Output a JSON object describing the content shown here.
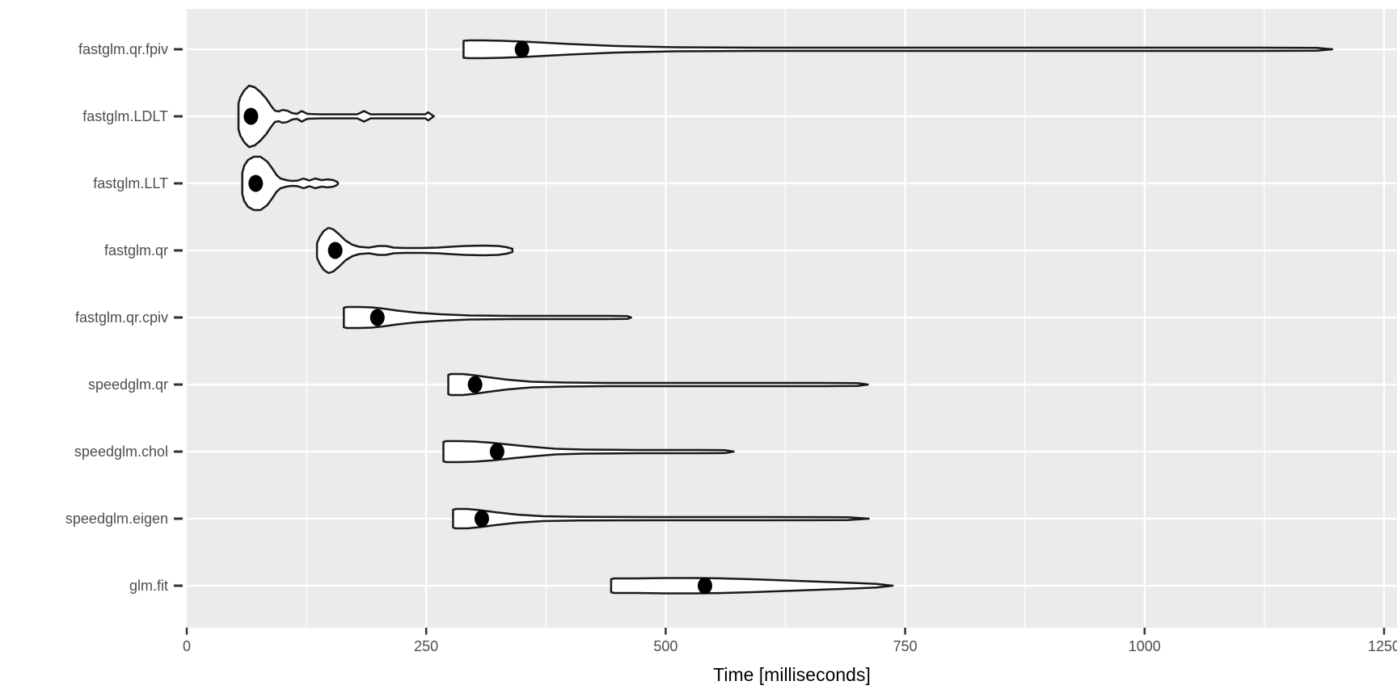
{
  "chart_data": {
    "type": "violin",
    "orientation": "horizontal",
    "title": "",
    "xlabel": "Time [milliseconds]",
    "ylabel": "",
    "xlim": [
      0,
      1263
    ],
    "grid": "on",
    "x_ticks": [
      {
        "value": 0,
        "label": "0"
      },
      {
        "value": 250,
        "label": "250"
      },
      {
        "value": 500,
        "label": "500"
      },
      {
        "value": 750,
        "label": "750"
      },
      {
        "value": 1000,
        "label": "1000"
      },
      {
        "value": 1250,
        "label": "1250"
      }
    ],
    "x_minor_ticks": [
      125,
      375,
      625,
      875,
      1125
    ],
    "categories": [
      "fastglm.qr.fpiv",
      "fastglm.LDLT",
      "fastglm.LLT",
      "fastglm.qr",
      "fastglm.qr.cpiv",
      "speedglm.qr",
      "speedglm.chol",
      "speedglm.eigen",
      "glm.fit"
    ],
    "series": [
      {
        "name": "fastglm.qr.fpiv",
        "min_ms": 289,
        "median_ms": 350,
        "max_ms": 1196,
        "profile": [
          [
            289,
            10.5
          ],
          [
            295,
            11
          ],
          [
            310,
            11
          ],
          [
            330,
            10.5
          ],
          [
            360,
            9
          ],
          [
            400,
            6.5
          ],
          [
            450,
            4
          ],
          [
            510,
            2.5
          ],
          [
            600,
            2
          ],
          [
            800,
            2
          ],
          [
            1000,
            2
          ],
          [
            1120,
            2
          ],
          [
            1180,
            1.8
          ],
          [
            1196,
            0
          ]
        ]
      },
      {
        "name": "fastglm.LDLT",
        "min_ms": 54,
        "median_ms": 67,
        "max_ms": 258,
        "profile": [
          [
            54,
            16
          ],
          [
            56,
            24
          ],
          [
            60,
            32
          ],
          [
            65,
            38
          ],
          [
            71,
            36
          ],
          [
            77,
            30
          ],
          [
            83,
            22
          ],
          [
            88,
            13
          ],
          [
            92,
            7
          ],
          [
            96,
            6
          ],
          [
            100,
            8
          ],
          [
            105,
            7
          ],
          [
            110,
            4
          ],
          [
            115,
            3
          ],
          [
            120,
            6.5
          ],
          [
            126,
            3
          ],
          [
            140,
            2.5
          ],
          [
            160,
            2.5
          ],
          [
            178,
            2.5
          ],
          [
            185,
            6.5
          ],
          [
            192,
            2.5
          ],
          [
            215,
            2.5
          ],
          [
            240,
            2.5
          ],
          [
            249,
            2.5
          ],
          [
            252,
            5
          ],
          [
            258,
            0
          ]
        ]
      },
      {
        "name": "fastglm.LLT",
        "min_ms": 58,
        "median_ms": 72,
        "max_ms": 158,
        "profile": [
          [
            58,
            13
          ],
          [
            60,
            22
          ],
          [
            64,
            29
          ],
          [
            70,
            33
          ],
          [
            77,
            33
          ],
          [
            84,
            27
          ],
          [
            89,
            19
          ],
          [
            94,
            10
          ],
          [
            98,
            6
          ],
          [
            104,
            4
          ],
          [
            110,
            3
          ],
          [
            116,
            3.5
          ],
          [
            122,
            6
          ],
          [
            128,
            3.5
          ],
          [
            134,
            6
          ],
          [
            141,
            4
          ],
          [
            147,
            5
          ],
          [
            153,
            4
          ],
          [
            157,
            2
          ],
          [
            158,
            0
          ]
        ]
      },
      {
        "name": "fastglm.qr",
        "min_ms": 136,
        "median_ms": 155,
        "max_ms": 340,
        "profile": [
          [
            136,
            9
          ],
          [
            139,
            17
          ],
          [
            143,
            24
          ],
          [
            148,
            28
          ],
          [
            153,
            26
          ],
          [
            159,
            20
          ],
          [
            166,
            12
          ],
          [
            173,
            7
          ],
          [
            180,
            4.5
          ],
          [
            190,
            3.5
          ],
          [
            200,
            5.5
          ],
          [
            208,
            5.5
          ],
          [
            216,
            3.5
          ],
          [
            228,
            3
          ],
          [
            245,
            3
          ],
          [
            262,
            3.5
          ],
          [
            275,
            4.5
          ],
          [
            290,
            5.5
          ],
          [
            310,
            6
          ],
          [
            325,
            5.5
          ],
          [
            334,
            4
          ],
          [
            340,
            2
          ]
        ]
      },
      {
        "name": "fastglm.qr.cpiv",
        "min_ms": 164,
        "median_ms": 199,
        "max_ms": 464,
        "profile": [
          [
            164,
            12
          ],
          [
            167,
            13
          ],
          [
            180,
            13
          ],
          [
            193,
            12.5
          ],
          [
            205,
            11
          ],
          [
            220,
            8.5
          ],
          [
            240,
            6
          ],
          [
            265,
            4
          ],
          [
            295,
            2.5
          ],
          [
            340,
            2
          ],
          [
            400,
            2
          ],
          [
            440,
            2
          ],
          [
            460,
            1.8
          ],
          [
            464,
            0
          ]
        ]
      },
      {
        "name": "speedglm.qr",
        "min_ms": 273,
        "median_ms": 301,
        "max_ms": 711,
        "profile": [
          [
            273,
            12
          ],
          [
            276,
            13
          ],
          [
            288,
            13
          ],
          [
            300,
            11.5
          ],
          [
            315,
            9
          ],
          [
            335,
            6
          ],
          [
            360,
            3.5
          ],
          [
            395,
            2.5
          ],
          [
            440,
            2
          ],
          [
            550,
            2
          ],
          [
            650,
            2
          ],
          [
            700,
            1.8
          ],
          [
            711,
            0
          ]
        ]
      },
      {
        "name": "speedglm.chol",
        "min_ms": 268,
        "median_ms": 324,
        "max_ms": 571,
        "profile": [
          [
            268,
            12
          ],
          [
            271,
            13
          ],
          [
            285,
            13
          ],
          [
            300,
            12.5
          ],
          [
            318,
            11
          ],
          [
            338,
            8.5
          ],
          [
            360,
            6
          ],
          [
            385,
            3.5
          ],
          [
            415,
            2.5
          ],
          [
            470,
            2
          ],
          [
            530,
            2
          ],
          [
            562,
            1.8
          ],
          [
            571,
            0
          ]
        ]
      },
      {
        "name": "speedglm.eigen",
        "min_ms": 278,
        "median_ms": 308,
        "max_ms": 712,
        "profile": [
          [
            278,
            11
          ],
          [
            281,
            12
          ],
          [
            293,
            12
          ],
          [
            306,
            10.5
          ],
          [
            322,
            8
          ],
          [
            345,
            5
          ],
          [
            372,
            3
          ],
          [
            410,
            2.2
          ],
          [
            480,
            2
          ],
          [
            600,
            2
          ],
          [
            690,
            1.8
          ],
          [
            712,
            0
          ]
        ]
      },
      {
        "name": "glm.fit",
        "min_ms": 443,
        "median_ms": 541,
        "max_ms": 737,
        "profile": [
          [
            443,
            8
          ],
          [
            446,
            9
          ],
          [
            470,
            9
          ],
          [
            500,
            9.5
          ],
          [
            530,
            9.5
          ],
          [
            560,
            9
          ],
          [
            590,
            8
          ],
          [
            625,
            6.5
          ],
          [
            660,
            5
          ],
          [
            695,
            3.5
          ],
          [
            720,
            2.2
          ],
          [
            737,
            0
          ]
        ]
      }
    ],
    "colors": {
      "panel_bg": "#EBEBEB",
      "grid_major": "#FFFFFF",
      "grid_minor": "#FFFFFF",
      "violin_fill": "#FFFFFF",
      "violin_stroke": "#1A1A1A",
      "median_point": "#000000",
      "axis_text": "#4D4D4D",
      "axis_title": "#000000",
      "tick_mark": "#333333"
    }
  }
}
